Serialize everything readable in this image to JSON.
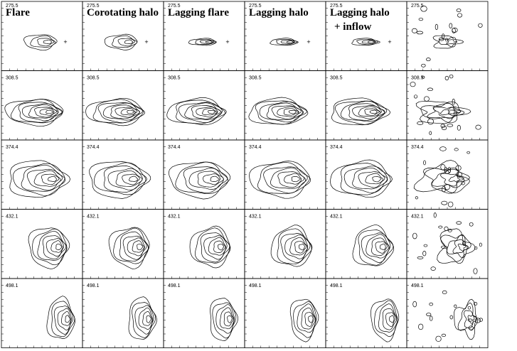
{
  "columns": [
    {
      "title": "Flare"
    },
    {
      "title": "Corotating halo"
    },
    {
      "title": "Lagging flare"
    },
    {
      "title": "Lagging halo"
    },
    {
      "title": "Lagging halo",
      "subtitle": "+ inflow"
    }
  ],
  "rows": [
    "275.5",
    "308.5",
    "374.4",
    "432.1",
    "498.1"
  ]
}
